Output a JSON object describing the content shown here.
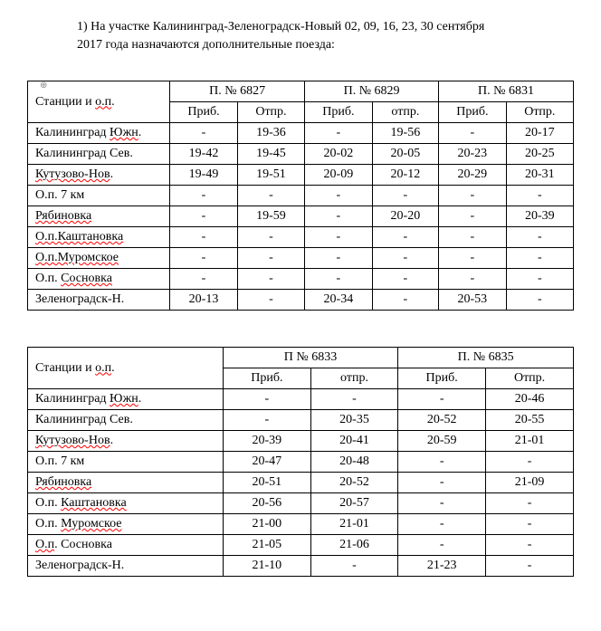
{
  "heading": {
    "number": "1)",
    "text_line1": "На участке Калининград-Зеленоградск-Новый 02, 09, 16, 23, 30 сентября",
    "text_line2": "2017 года назначаются дополнительные поезда:"
  },
  "anchor_symbol": "⊕",
  "stations_header": "Станции и о.п.",
  "sub_arr": "Приб.",
  "sub_dep": "Отпр.",
  "sub_dep_lc": "отпр.",
  "table1": {
    "trains": [
      "П. № 6827",
      "П. № 6829",
      "П. № 6831"
    ],
    "stations": [
      {
        "name": "Калининград Южн.",
        "err": "Южн",
        "cells": [
          "-",
          "19-36",
          "-",
          "19-56",
          "-",
          "20-17"
        ]
      },
      {
        "name": "Калининград Сев.",
        "cells": [
          "19-42",
          "19-45",
          "20-02",
          "20-05",
          "20-23",
          "20-25"
        ]
      },
      {
        "name": "Кутузово-Нов.",
        "err": "Кутузово-Нов",
        "cells": [
          "19-49",
          "19-51",
          "20-09",
          "20-12",
          "20-29",
          "20-31"
        ]
      },
      {
        "name": "О.п. 7 км",
        "cells": [
          "-",
          "-",
          "-",
          "-",
          "-",
          "-"
        ]
      },
      {
        "name": "Рябиновка",
        "err": "Рябиновка",
        "cells": [
          "-",
          "19-59",
          "-",
          "20-20",
          "-",
          "20-39"
        ]
      },
      {
        "name": "О.п.Каштановка",
        "err": "О.п.Каштановка",
        "cells": [
          "-",
          "-",
          "-",
          "-",
          "-",
          "-"
        ]
      },
      {
        "name": "О.п.Муромское",
        "err": "О.п.Муромское",
        "cells": [
          "-",
          "-",
          "-",
          "-",
          "-",
          "-"
        ]
      },
      {
        "name": "О.п. Сосновка",
        "err": "Сосновка",
        "cells": [
          "-",
          "-",
          "-",
          "-",
          "-",
          "-"
        ]
      },
      {
        "name": "Зеленоградск-Н.",
        "cells": [
          "20-13",
          "-",
          "20-34",
          "-",
          "20-53",
          "-"
        ]
      }
    ]
  },
  "table2": {
    "trains": [
      "П № 6833",
      "П. № 6835"
    ],
    "stations": [
      {
        "name": "Калининград Южн.",
        "err": "Южн",
        "cells": [
          "-",
          "-",
          "-",
          "20-46"
        ]
      },
      {
        "name": "Калининград Сев.",
        "cells": [
          "-",
          "20-35",
          "20-52",
          "20-55"
        ]
      },
      {
        "name": "Кутузово-Нов.",
        "err": "Кутузово-Нов",
        "cells": [
          "20-39",
          "20-41",
          "20-59",
          "21-01"
        ]
      },
      {
        "name": "О.п. 7 км",
        "cells": [
          "20-47",
          "20-48",
          "-",
          "-"
        ]
      },
      {
        "name": "Рябиновка",
        "err": "Рябиновка",
        "cells": [
          "20-51",
          "20-52",
          "-",
          "21-09"
        ]
      },
      {
        "name": "О.п. Каштановка",
        "err": "Каштановка",
        "cells": [
          "20-56",
          "20-57",
          "-",
          "-"
        ]
      },
      {
        "name": "О.п. Муромское",
        "err": "Муромское",
        "cells": [
          "21-00",
          "21-01",
          "-",
          "-"
        ]
      },
      {
        "name": "О.п. Сосновка",
        "err": "О.п",
        "cells": [
          "21-05",
          "21-06",
          "-",
          "-"
        ]
      },
      {
        "name": "Зеленоградск-Н.",
        "cells": [
          "21-10",
          "-",
          "21-23",
          "-"
        ]
      }
    ]
  },
  "col_widths": {
    "t1_station": "160px",
    "t1_cell": "72px",
    "t2_station": "220px",
    "t2_cell": "92px"
  }
}
